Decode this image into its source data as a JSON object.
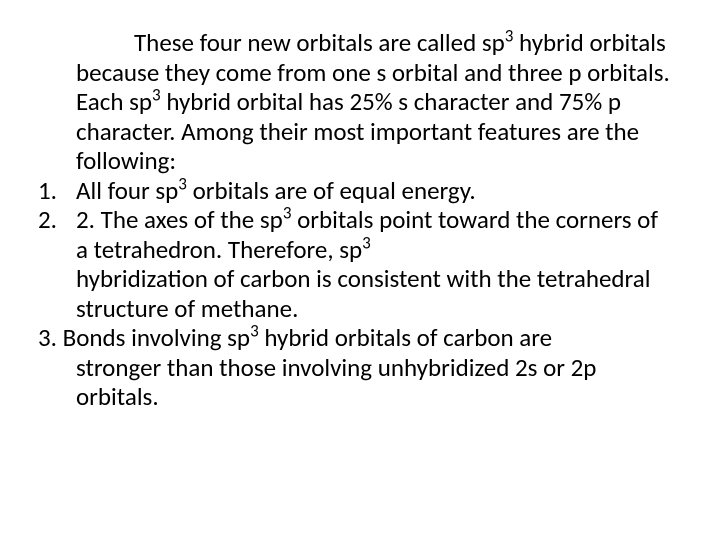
{
  "intro": {
    "line1": "These four new orbitals are called sp",
    "sup1": "3",
    "line1b": " hybrid",
    "line2": "orbitals because they come from one s orbital",
    "line3": "and three p orbitals. Each sp",
    "sup2": "3",
    "line3b": " hybrid orbital has",
    "line4": "25% s character and 75% p character. Among",
    "line5": "their most important features are the following:"
  },
  "item1": {
    "num": "1.",
    "a": "All four sp",
    "sup": "3",
    "b": " orbitals are of equal energy."
  },
  "item2": {
    "num": "2.",
    "a": "2. The axes of the sp",
    "sup1": "3",
    "b": " orbitals point toward the",
    "c": "corners of a tetrahedron. Therefore, sp",
    "sup2": "3",
    "d": "hybridization of carbon is consistent with the",
    "e": "tetrahedral structure of methane."
  },
  "item3": {
    "a": "3. Bonds involving sp",
    "sup": "3",
    "b": " hybrid orbitals of carbon are",
    "c": "stronger than those involving unhybridized 2s or",
    "d": "2p orbitals."
  }
}
